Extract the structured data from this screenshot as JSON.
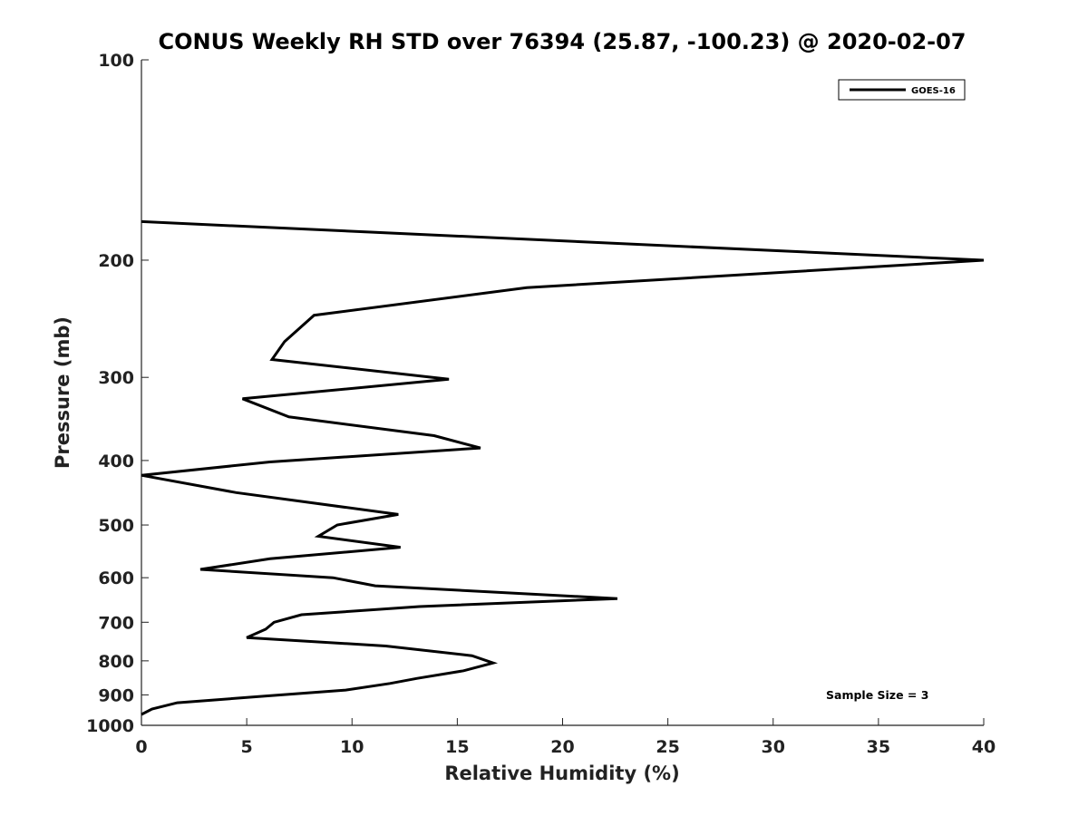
{
  "chart_data": {
    "type": "line",
    "title": "CONUS Weekly RH STD over 76394 (25.87, -100.23) @ 2020-02-07",
    "xlabel": "Relative Humidity (%)",
    "ylabel": "Pressure (mb)",
    "xlim": [
      0,
      40
    ],
    "ylim": [
      100,
      1000
    ],
    "y_scale": "log",
    "y_reversed": true,
    "x_ticks": [
      0,
      5,
      10,
      15,
      20,
      25,
      30,
      35,
      40
    ],
    "x_tick_labels": [
      "0",
      "5",
      "10",
      "15",
      "20",
      "25",
      "30",
      "35",
      "40"
    ],
    "y_ticks": [
      100,
      200,
      300,
      400,
      500,
      600,
      700,
      800,
      900,
      1000
    ],
    "y_tick_labels": [
      "100",
      "200",
      "300",
      "400",
      "500",
      "600",
      "700",
      "800",
      "900",
      "1000"
    ],
    "grid": false,
    "legend_position": "top-right",
    "annotation": "Sample Size = 3",
    "series": [
      {
        "name": "GOES-16",
        "color": "#000000",
        "x": [
          0,
          40,
          18.3,
          8.2,
          6.8,
          6.2,
          14.6,
          4.8,
          7.0,
          13.9,
          16.1,
          6.1,
          0,
          4.5,
          12.2,
          9.3,
          8.4,
          12.3,
          6.1,
          2.8,
          9.1,
          11.1,
          22.6,
          13.2,
          7.6,
          6.3,
          5.9,
          5.0,
          11.6,
          15.7,
          16.7,
          15.3,
          13.1,
          11.8,
          9.7,
          6.0,
          1.7,
          0.5,
          0
        ],
        "y": [
          175,
          200,
          220,
          242,
          265,
          282,
          302,
          323,
          344,
          367,
          383,
          402,
          421,
          447,
          482,
          500,
          520,
          540,
          562,
          583,
          600,
          617,
          645,
          663,
          682,
          700,
          717,
          738,
          760,
          786,
          806,
          828,
          850,
          865,
          885,
          903,
          925,
          945,
          963
        ]
      }
    ]
  }
}
